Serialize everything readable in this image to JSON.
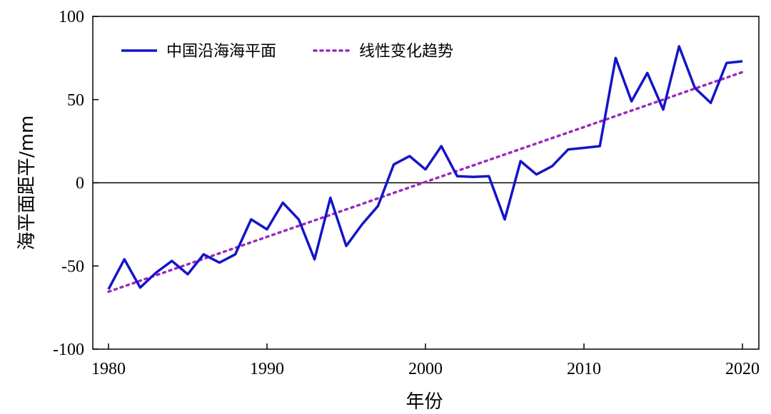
{
  "chart_data": {
    "type": "line",
    "xlabel": "年份",
    "ylabel": "海平面距平/mm",
    "xlim": [
      1980,
      2020
    ],
    "ylim": [
      -100,
      100
    ],
    "xticks": [
      1980,
      1990,
      2000,
      2010,
      2020
    ],
    "yticks": [
      100,
      50,
      0,
      -50,
      -100
    ],
    "xtick_labels": [
      "1980",
      "1990",
      "2000",
      "2010",
      "2020"
    ],
    "ytick_labels": [
      "100",
      "50",
      "0",
      "-50",
      "-100"
    ],
    "grid": false,
    "zero_line": true,
    "legend_position": "top-left",
    "x": [
      1980,
      1981,
      1982,
      1983,
      1984,
      1985,
      1986,
      1987,
      1988,
      1989,
      1990,
      1991,
      1992,
      1993,
      1994,
      1995,
      1996,
      1997,
      1998,
      1999,
      2000,
      2001,
      2002,
      2003,
      2004,
      2005,
      2006,
      2007,
      2008,
      2009,
      2010,
      2011,
      2012,
      2013,
      2014,
      2015,
      2016,
      2017,
      2018,
      2019,
      2020
    ],
    "series": [
      {
        "name": "中国沿海海平面",
        "style": "solid",
        "color": "#1414c8",
        "values": [
          -64,
          -46,
          -63,
          -54,
          -47,
          -55,
          -43,
          -48,
          -43,
          -22,
          -28,
          -12,
          -22,
          -46,
          -9,
          -38,
          -25,
          -14,
          11,
          16,
          8,
          22,
          4,
          3.5,
          4,
          -22,
          13,
          5,
          10,
          20,
          21,
          22,
          75,
          49,
          66,
          44,
          82,
          57,
          48,
          72,
          73
        ]
      },
      {
        "name": "线性变化趋势",
        "style": "dotted",
        "color": "#9a2bbf",
        "values": [
          -65.5,
          -62.2,
          -58.9,
          -55.6,
          -52.3,
          -49,
          -45.7,
          -42.4,
          -39.1,
          -35.8,
          -32.5,
          -29.2,
          -25.9,
          -22.6,
          -19.3,
          -16,
          -12.7,
          -9.4,
          -6.1,
          -2.8,
          0.5,
          3.8,
          7.1,
          10.4,
          13.7,
          17,
          20.3,
          23.6,
          26.9,
          30.2,
          33.5,
          36.8,
          40.1,
          43.4,
          46.7,
          50,
          53.3,
          56.6,
          59.9,
          63.2,
          66.5
        ]
      }
    ]
  }
}
